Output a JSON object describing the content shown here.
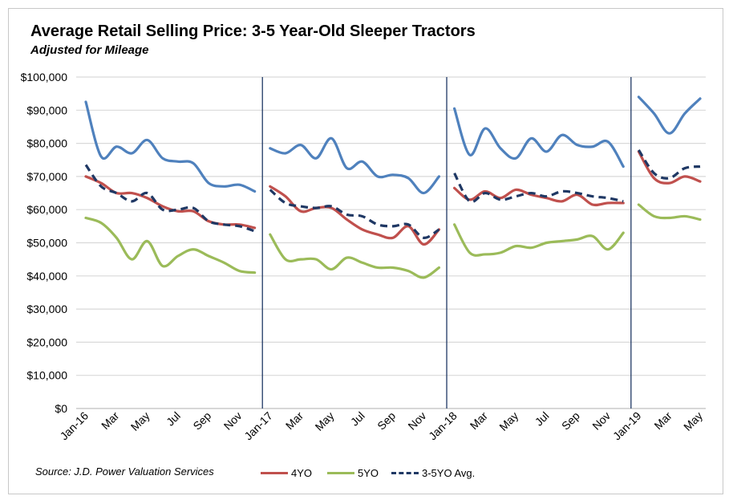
{
  "chart_data": {
    "type": "line",
    "title": "Average Retail Selling Price: 3-5 Year-Old Sleeper Tractors",
    "subtitle": "Adjusted for Mileage",
    "source": "Source: J.D. Power Valuation Services",
    "xlabel": "",
    "ylabel": "",
    "ylim": [
      0,
      100000
    ],
    "y_ticks": [
      "$0",
      "$10,000",
      "$20,000",
      "$30,000",
      "$40,000",
      "$50,000",
      "$60,000",
      "$70,000",
      "$80,000",
      "$90,000",
      "$100,000"
    ],
    "grid": "horizontal",
    "legend_position": "bottom",
    "year_dividers": [
      "Jan-17",
      "Jan-18",
      "Jan-19"
    ],
    "x_tick_labels": [
      "Jan-16",
      "Mar",
      "May",
      "Jul",
      "Sep",
      "Nov",
      "Jan-17",
      "Mar",
      "May",
      "Jul",
      "Sep",
      "Nov",
      "Jan-18",
      "Mar",
      "May",
      "Jul",
      "Sep",
      "Nov",
      "Jan-19",
      "Mar",
      "May"
    ],
    "segments_by_year": [
      12,
      12,
      12,
      5
    ],
    "series": [
      {
        "name": "",
        "color": "#4f81bd",
        "dashed": false,
        "values": [
          92500,
          76000,
          79000,
          77000,
          81000,
          75500,
          74500,
          74000,
          68000,
          67000,
          67500,
          65500,
          78500,
          77000,
          79500,
          75500,
          81500,
          72500,
          74500,
          70000,
          70500,
          69500,
          65000,
          70000,
          90500,
          76500,
          84500,
          78500,
          75500,
          81500,
          77500,
          82500,
          79500,
          79000,
          80500,
          73000,
          94000,
          89000,
          83000,
          89000,
          93500
        ]
      },
      {
        "name": "4YO",
        "color": "#c0504d",
        "dashed": false,
        "values": [
          70000,
          68000,
          65000,
          65000,
          63500,
          61000,
          59500,
          59500,
          56500,
          55500,
          55500,
          54500,
          67000,
          64000,
          59500,
          60500,
          60500,
          57000,
          54000,
          52500,
          51500,
          55000,
          49500,
          54000,
          66500,
          63000,
          65500,
          63500,
          66000,
          64500,
          63500,
          62500,
          64500,
          61500,
          62000,
          62000,
          77500,
          69500,
          68000,
          70000,
          68500
        ]
      },
      {
        "name": "5YO",
        "color": "#9bbb59",
        "dashed": false,
        "values": [
          57500,
          56000,
          51500,
          45000,
          50500,
          43000,
          46000,
          48000,
          46000,
          44000,
          41500,
          41000,
          52500,
          45000,
          45000,
          45000,
          42000,
          45500,
          44000,
          42500,
          42500,
          41500,
          39500,
          42500,
          55500,
          47000,
          46500,
          47000,
          49000,
          48500,
          50000,
          50500,
          51000,
          52000,
          48000,
          53000,
          61500,
          58000,
          57500,
          58000,
          57000
        ]
      },
      {
        "name": "3-5YO Avg.",
        "color": "#1f3864",
        "dashed": true,
        "values": [
          73500,
          67000,
          65000,
          62500,
          65000,
          60000,
          60000,
          60500,
          56500,
          55500,
          55000,
          53500,
          66000,
          62000,
          61000,
          60500,
          61000,
          58500,
          58000,
          55500,
          55000,
          55500,
          51500,
          54000,
          71000,
          62500,
          65000,
          63000,
          64000,
          65000,
          64000,
          65500,
          65000,
          64000,
          63500,
          62500,
          78000,
          71000,
          69500,
          72500,
          73000
        ]
      }
    ]
  }
}
